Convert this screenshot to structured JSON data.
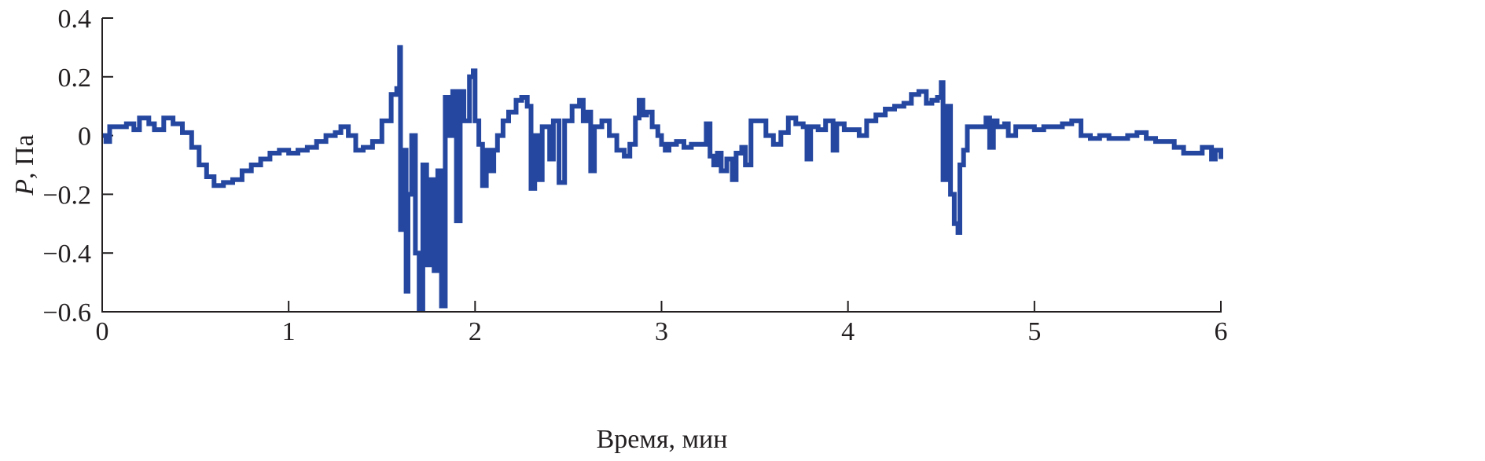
{
  "chart_data": {
    "type": "line",
    "title": "",
    "xlabel": "Время, мин",
    "ylabel": {
      "symbol": "P",
      "unit": ", Па"
    },
    "xlim": [
      0,
      6
    ],
    "ylim": [
      -0.6,
      0.4
    ],
    "x_ticks": [
      "0",
      "1",
      "2",
      "3",
      "4",
      "5",
      "6"
    ],
    "x_tick_values": [
      0,
      1,
      2,
      3,
      4,
      5,
      6
    ],
    "y_ticks": [
      "0.4",
      "0.2",
      "0",
      "−0.2",
      "−0.4",
      "−0.6"
    ],
    "y_tick_values": [
      0.4,
      0.2,
      0,
      -0.2,
      -0.4,
      -0.6
    ],
    "grid": false,
    "legend": "none",
    "line_color": "#2547a0",
    "series": [
      {
        "x": [
          0,
          0.02,
          0.04,
          0.1,
          0.13,
          0.17,
          0.2,
          0.25,
          0.28,
          0.33,
          0.38,
          0.43,
          0.48,
          0.52,
          0.56,
          0.6,
          0.65,
          0.7,
          0.75,
          0.8,
          0.85,
          0.9,
          0.95,
          1.0,
          1.05,
          1.1,
          1.15,
          1.2,
          1.25,
          1.28,
          1.32,
          1.36,
          1.4,
          1.45,
          1.5,
          1.55,
          1.58,
          1.595,
          1.6,
          1.62,
          1.63,
          1.64,
          1.66,
          1.68,
          1.7,
          1.72,
          1.74,
          1.76,
          1.78,
          1.8,
          1.82,
          1.84,
          1.86,
          1.88,
          1.9,
          1.92,
          1.94,
          1.97,
          1.99,
          2.0,
          2.02,
          2.04,
          2.06,
          2.08,
          2.1,
          2.12,
          2.15,
          2.18,
          2.22,
          2.25,
          2.28,
          2.3,
          2.32,
          2.34,
          2.36,
          2.4,
          2.42,
          2.45,
          2.48,
          2.52,
          2.56,
          2.58,
          2.6,
          2.62,
          2.64,
          2.68,
          2.72,
          2.76,
          2.8,
          2.83,
          2.86,
          2.88,
          2.9,
          2.92,
          2.95,
          2.98,
          3.0,
          3.02,
          3.04,
          3.08,
          3.12,
          3.16,
          3.2,
          3.24,
          3.26,
          3.28,
          3.3,
          3.32,
          3.35,
          3.38,
          3.4,
          3.43,
          3.45,
          3.48,
          3.52,
          3.56,
          3.6,
          3.64,
          3.68,
          3.72,
          3.76,
          3.78,
          3.8,
          3.84,
          3.88,
          3.92,
          3.94,
          3.98,
          4.02,
          4.06,
          4.1,
          4.15,
          4.2,
          4.25,
          4.3,
          4.34,
          4.38,
          4.42,
          4.45,
          4.48,
          4.5,
          4.51,
          4.53,
          4.55,
          4.57,
          4.59,
          4.6,
          4.62,
          4.64,
          4.68,
          4.72,
          4.74,
          4.76,
          4.78,
          4.8,
          4.84,
          4.86,
          4.9,
          4.95,
          5.0,
          5.05,
          5.1,
          5.15,
          5.2,
          5.25,
          5.3,
          5.35,
          5.4,
          5.45,
          5.5,
          5.55,
          5.6,
          5.65,
          5.7,
          5.75,
          5.8,
          5.85,
          5.9,
          5.95,
          5.97,
          6.0
        ],
        "y": [
          0,
          -0.02,
          0.03,
          0.03,
          0.04,
          0.02,
          0.06,
          0.04,
          0.02,
          0.06,
          0.04,
          0.01,
          -0.04,
          -0.1,
          -0.14,
          -0.17,
          -0.16,
          -0.15,
          -0.12,
          -0.1,
          -0.08,
          -0.06,
          -0.05,
          -0.06,
          -0.05,
          -0.04,
          -0.02,
          0.0,
          0.01,
          0.03,
          0.0,
          -0.05,
          -0.04,
          -0.02,
          0.05,
          0.14,
          0.16,
          0.3,
          -0.32,
          -0.05,
          -0.53,
          -0.2,
          0.0,
          -0.4,
          -0.59,
          -0.1,
          -0.44,
          -0.15,
          -0.46,
          -0.12,
          -0.58,
          0.13,
          0.0,
          0.15,
          -0.29,
          0.15,
          0.05,
          0.2,
          0.22,
          0.05,
          -0.03,
          -0.17,
          -0.05,
          -0.12,
          -0.05,
          0.0,
          0.05,
          0.08,
          0.12,
          0.13,
          0.1,
          -0.18,
          0.0,
          -0.15,
          0.03,
          -0.08,
          0.05,
          -0.16,
          0.05,
          0.1,
          0.12,
          0.05,
          0.08,
          -0.12,
          0.03,
          0.05,
          0.0,
          -0.05,
          -0.07,
          -0.03,
          0.06,
          0.12,
          0.07,
          0.08,
          0.03,
          0.0,
          -0.03,
          -0.05,
          -0.03,
          -0.02,
          -0.04,
          -0.03,
          -0.03,
          0.04,
          -0.07,
          -0.1,
          -0.06,
          -0.12,
          -0.08,
          -0.15,
          -0.06,
          -0.04,
          -0.1,
          0.05,
          0.05,
          0.0,
          -0.03,
          0.01,
          0.06,
          0.04,
          0.03,
          -0.08,
          0.03,
          0.02,
          0.05,
          -0.05,
          0.04,
          0.02,
          0.02,
          0.0,
          0.05,
          0.07,
          0.09,
          0.1,
          0.11,
          0.14,
          0.15,
          0.11,
          0.12,
          0.13,
          0.18,
          -0.15,
          0.1,
          -0.2,
          -0.3,
          -0.33,
          -0.1,
          -0.05,
          0.03,
          0.03,
          0.03,
          0.06,
          -0.04,
          0.05,
          0.03,
          0.04,
          0.0,
          0.03,
          0.03,
          0.02,
          0.03,
          0.03,
          0.04,
          0.05,
          0.0,
          -0.01,
          0.0,
          -0.01,
          -0.01,
          0.0,
          0.01,
          -0.01,
          -0.02,
          -0.02,
          -0.04,
          -0.06,
          -0.06,
          -0.04,
          -0.08,
          -0.05,
          -0.08
        ]
      }
    ]
  }
}
